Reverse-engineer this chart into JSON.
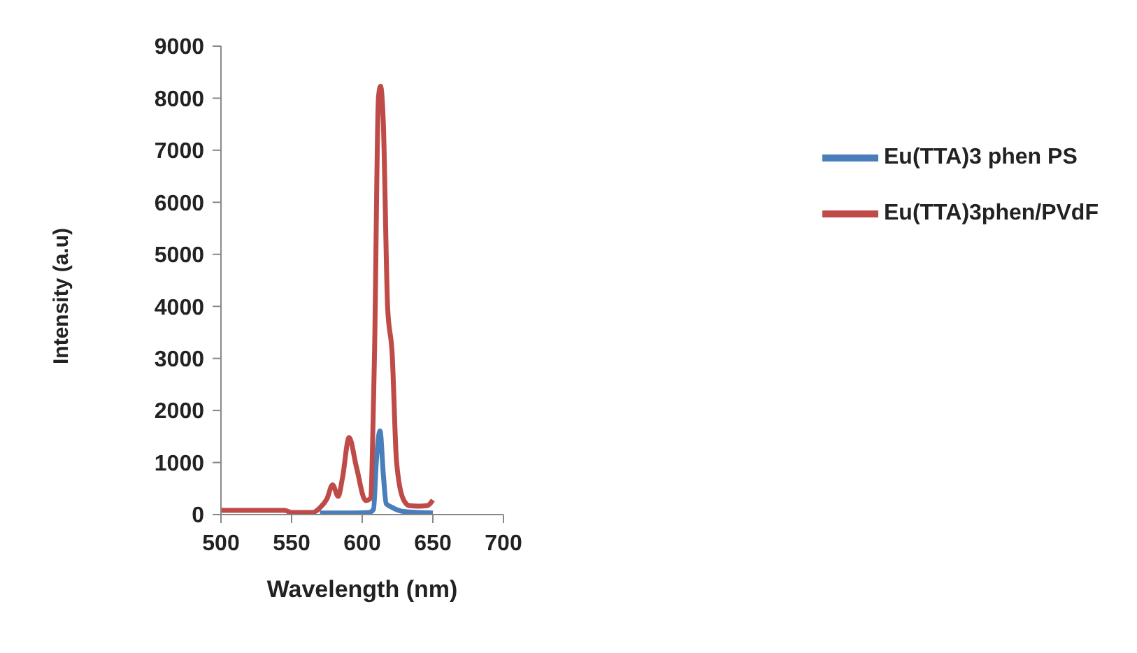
{
  "chart_data": {
    "type": "line",
    "xlabel": "Wavelength (nm)",
    "ylabel": "Intensity (a.u)",
    "xlim": [
      500,
      700
    ],
    "xticks": [
      500,
      550,
      600,
      650,
      700
    ],
    "ylim": [
      0,
      9000
    ],
    "yticks": [
      0,
      1000,
      2000,
      3000,
      4000,
      5000,
      6000,
      7000,
      8000,
      9000
    ],
    "legend": "right",
    "marker": "none",
    "line_style": "solid",
    "series": [
      {
        "name": "Eu(TTA)3 phen PS",
        "color": "#4a7ebb",
        "x": [
          570,
          590,
          605,
          608,
          610,
          612.6,
          615,
          617,
          621,
          629,
          640,
          650
        ],
        "values": [
          30,
          30,
          40,
          100,
          1020,
          1610,
          750,
          210,
          140,
          60,
          40,
          30
        ]
      },
      {
        "name": "Eu(TTA)3phen/PVdF",
        "color": "#be4b48",
        "x": [
          500,
          520,
          545,
          550,
          565,
          570,
          575,
          579,
          583,
          586,
          590.7,
          596,
          602.4,
          605.5,
          608.7,
          611.5,
          613,
          614.9,
          618,
          621.2,
          624.3,
          629,
          633.5,
          640,
          646,
          650
        ],
        "values": [
          80,
          80,
          80,
          40,
          40,
          130,
          300,
          570,
          350,
          700,
          1480,
          900,
          270,
          300,
          3090,
          8010,
          8230,
          7560,
          3980,
          3090,
          1020,
          300,
          170,
          160,
          170,
          280
        ]
      }
    ]
  }
}
